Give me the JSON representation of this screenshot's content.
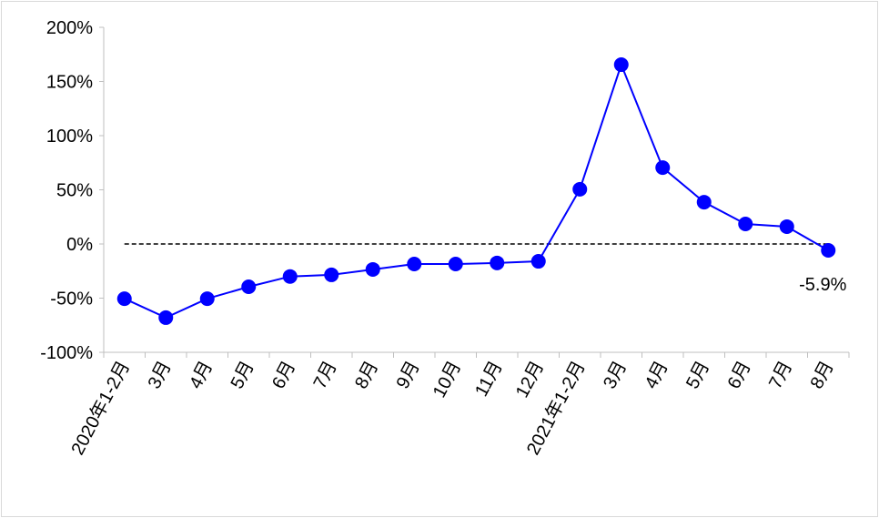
{
  "chart_data": {
    "type": "line",
    "title": "",
    "xlabel": "",
    "ylabel": "",
    "categories": [
      "2020年1-2月",
      "3月",
      "4月",
      "5月",
      "6月",
      "7月",
      "8月",
      "9月",
      "10月",
      "11月",
      "12月",
      "2021年1-2月",
      "3月",
      "4月",
      "5月",
      "6月",
      "7月",
      "8月"
    ],
    "series": [
      {
        "values": [
          -50.5,
          -68,
          -50.5,
          -39.5,
          -30,
          -28.5,
          -23.5,
          -18.5,
          -18.5,
          -17.5,
          -16,
          50.5,
          165.5,
          70.5,
          38.6,
          18.5,
          16,
          -5.9
        ]
      }
    ],
    "ylim": [
      -100,
      200
    ],
    "yticks": [
      -100,
      -50,
      0,
      50,
      100,
      150,
      200
    ],
    "ytick_labels": [
      "-100%",
      "-50%",
      "0%",
      "50%",
      "100%",
      "150%",
      "200%"
    ],
    "annotations": [
      {
        "category_index": 17,
        "text": "-5.9%"
      }
    ],
    "reference_line": {
      "y": 0,
      "style": "dashed",
      "color": "#000000"
    },
    "series_color": "#0000ff",
    "marker": "circle",
    "grid": false,
    "legend": "none"
  }
}
